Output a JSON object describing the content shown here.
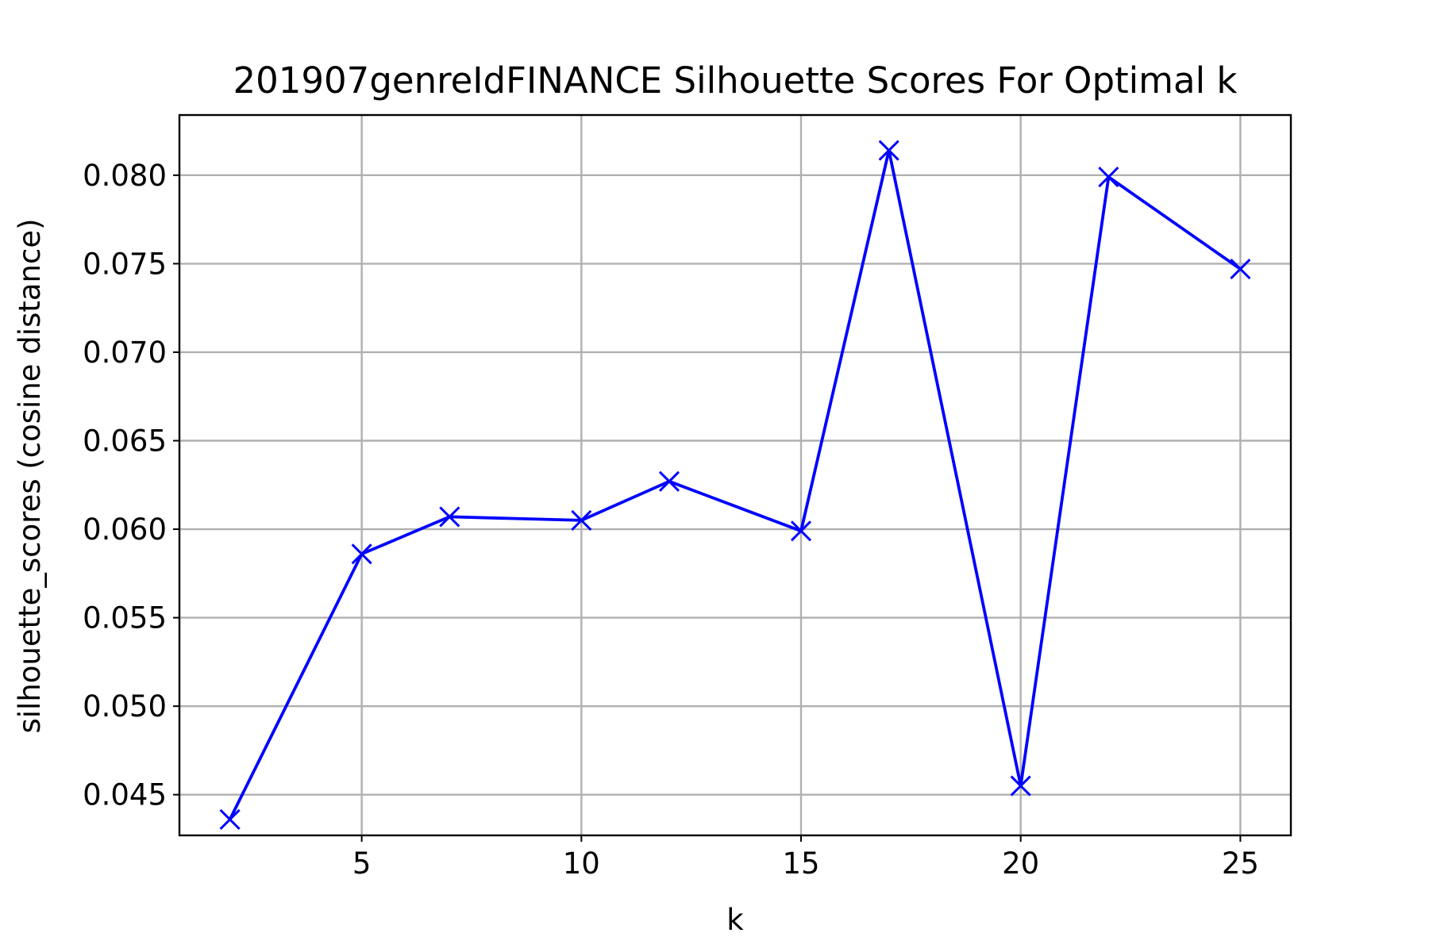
{
  "chart_data": {
    "type": "line",
    "title": "201907genreIdFINANCE Silhouette Scores For Optimal k",
    "xlabel": "k",
    "ylabel": "silhouette_scores (cosine distance)",
    "xlim": [
      0.85,
      26.15
    ],
    "ylim": [
      0.0427,
      0.0834
    ],
    "xticks": [
      5,
      10,
      15,
      20,
      25
    ],
    "xtick_labels": [
      "5",
      "10",
      "15",
      "20",
      "25"
    ],
    "yticks": [
      0.045,
      0.05,
      0.055,
      0.06,
      0.065,
      0.07,
      0.075,
      0.08
    ],
    "ytick_labels": [
      "0.045",
      "0.050",
      "0.055",
      "0.060",
      "0.065",
      "0.070",
      "0.075",
      "0.080"
    ],
    "grid": true,
    "series": [
      {
        "color": "#0000ff",
        "marker": "x",
        "x": [
          2,
          5,
          7,
          10,
          12,
          15,
          17,
          20,
          22,
          25
        ],
        "y": [
          0.0436,
          0.0586,
          0.0607,
          0.0605,
          0.0627,
          0.0599,
          0.0814,
          0.0455,
          0.0799,
          0.0747
        ]
      }
    ]
  }
}
